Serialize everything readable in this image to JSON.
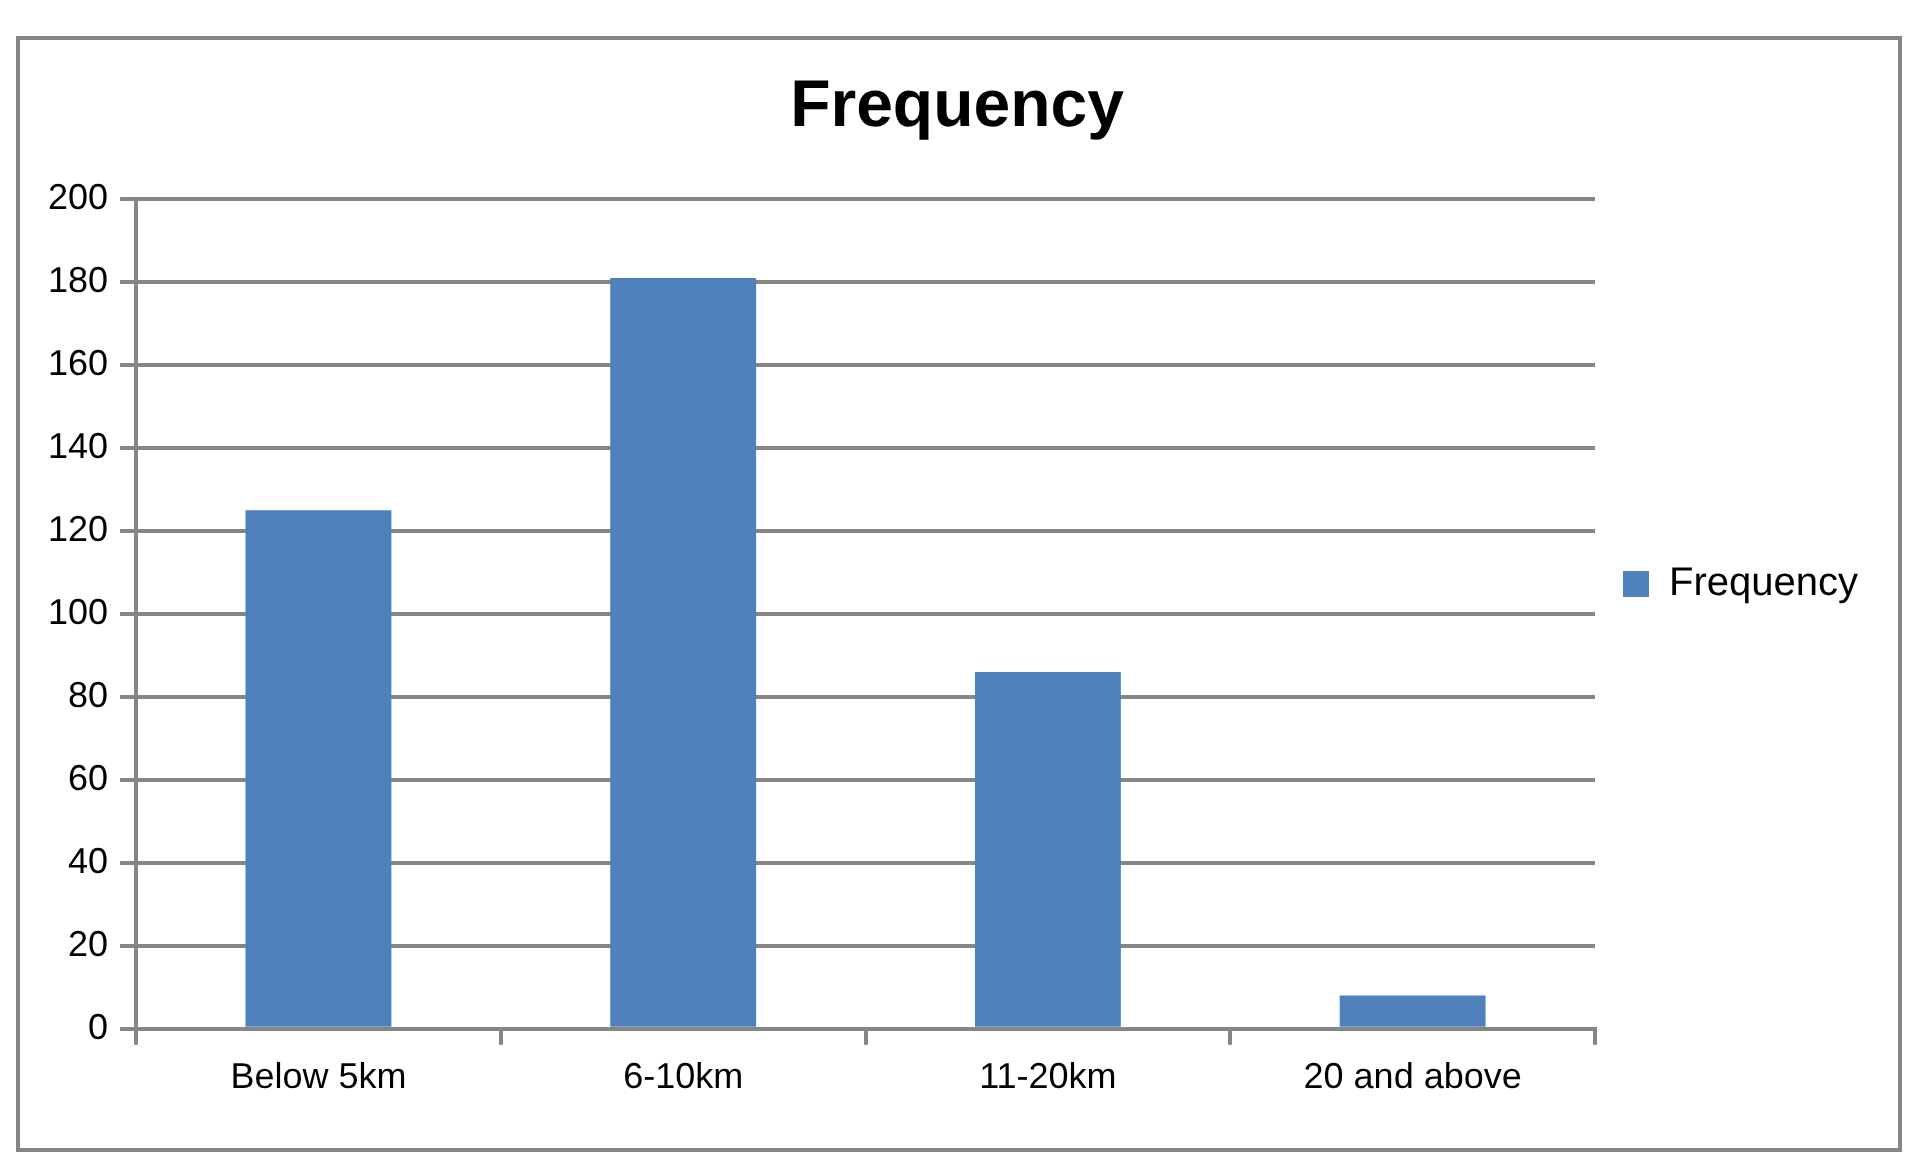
{
  "chart_data": {
    "type": "bar",
    "title": "Frequency",
    "categories": [
      "Below 5km",
      "6-10km",
      "11-20km",
      "20 and above"
    ],
    "series": [
      {
        "name": "Frequency",
        "color": "#4f81bd",
        "values": [
          125,
          181,
          86,
          8
        ]
      }
    ],
    "ylim": [
      0,
      200
    ],
    "yticks": [
      0,
      20,
      40,
      60,
      80,
      100,
      120,
      140,
      160,
      180,
      200
    ],
    "grid": "y",
    "legend": "right"
  }
}
